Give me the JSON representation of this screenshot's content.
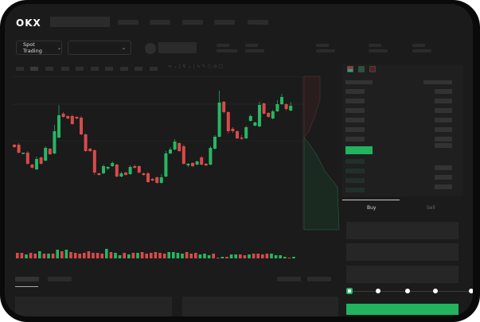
{
  "header": {
    "logo": "OKX"
  },
  "toolbar": {
    "market_selector": "Spot Trading"
  },
  "order_form": {
    "tabs": [
      {
        "label": "Buy",
        "active": true
      },
      {
        "label": "Sell",
        "active": false
      }
    ],
    "slider_value": 0
  },
  "colors": {
    "up": "#26b764",
    "down": "#d94a4a",
    "background": "#1b1b1b",
    "accent": "#21c063"
  },
  "chart_data": {
    "type": "candlestick",
    "candles": [
      [
        68,
        65,
        69,
        64
      ],
      [
        68,
        58,
        70,
        57
      ],
      [
        57,
        58,
        58,
        56
      ],
      [
        58,
        44,
        60,
        43
      ],
      [
        43,
        39,
        44,
        38
      ],
      [
        37,
        50,
        53,
        36
      ],
      [
        52,
        44,
        53,
        43
      ],
      [
        48,
        64,
        66,
        47
      ],
      [
        63,
        56,
        64,
        55
      ],
      [
        57,
        85,
        93,
        56
      ],
      [
        77,
        105,
        118,
        76
      ],
      [
        107,
        103,
        109,
        102
      ],
      [
        104,
        101,
        105,
        100
      ],
      [
        104,
        94,
        106,
        93
      ],
      [
        103,
        101,
        104,
        100
      ],
      [
        102,
        81,
        104,
        80
      ],
      [
        81,
        60,
        82,
        59
      ],
      [
        63,
        60,
        64,
        59
      ],
      [
        61,
        33,
        62,
        30
      ],
      [
        32,
        30,
        33,
        29
      ],
      [
        32,
        41,
        43,
        31
      ],
      [
        38,
        40,
        41,
        36
      ],
      [
        41,
        45,
        47,
        40
      ],
      [
        43,
        28,
        44,
        27
      ],
      [
        28,
        32,
        34,
        27
      ],
      [
        33,
        30,
        34,
        29
      ],
      [
        31,
        40,
        42,
        30
      ],
      [
        41,
        39,
        43,
        38
      ],
      [
        41,
        33,
        42,
        32
      ],
      [
        32,
        30,
        33,
        29
      ],
      [
        32,
        21,
        34,
        20
      ],
      [
        25,
        23,
        26,
        22
      ],
      [
        27,
        20,
        28,
        19
      ],
      [
        20,
        27,
        31,
        19
      ],
      [
        28,
        57,
        60,
        27
      ],
      [
        57,
        62,
        65,
        56
      ],
      [
        62,
        72,
        75,
        61
      ],
      [
        70,
        60,
        71,
        59
      ],
      [
        66,
        44,
        68,
        43
      ],
      [
        42,
        44,
        45,
        40
      ],
      [
        45,
        41,
        46,
        40
      ],
      [
        43,
        47,
        48,
        42
      ],
      [
        52,
        43,
        54,
        42
      ],
      [
        44,
        42,
        45,
        41
      ],
      [
        43,
        64,
        66,
        42
      ],
      [
        63,
        78,
        80,
        62
      ],
      [
        78,
        121,
        136,
        77
      ],
      [
        122,
        109,
        123,
        107
      ],
      [
        109,
        85,
        110,
        82
      ],
      [
        88,
        85,
        90,
        83
      ],
      [
        85,
        76,
        86,
        75
      ],
      [
        77,
        76,
        80,
        74
      ],
      [
        76,
        90,
        92,
        75
      ],
      [
        98,
        104,
        106,
        97
      ],
      [
        92,
        96,
        97,
        91
      ],
      [
        91,
        118,
        122,
        90
      ],
      [
        120,
        107,
        121,
        106
      ],
      [
        108,
        103,
        109,
        102
      ],
      [
        101,
        110,
        112,
        100
      ],
      [
        110,
        119,
        124,
        109
      ],
      [
        119,
        128,
        132,
        118
      ],
      [
        119,
        113,
        120,
        111
      ],
      [
        111,
        117,
        122,
        110
      ]
    ],
    "volume": [
      [
        7,
        0
      ],
      [
        7,
        0
      ],
      [
        5,
        1
      ],
      [
        7,
        0
      ],
      [
        6,
        0
      ],
      [
        9,
        1
      ],
      [
        6,
        0
      ],
      [
        6,
        1
      ],
      [
        6,
        0
      ],
      [
        11,
        1
      ],
      [
        9,
        0
      ],
      [
        11,
        1
      ],
      [
        8,
        0
      ],
      [
        7,
        0
      ],
      [
        6,
        0
      ],
      [
        7,
        0
      ],
      [
        9,
        0
      ],
      [
        7,
        0
      ],
      [
        7,
        0
      ],
      [
        6,
        0
      ],
      [
        12,
        1
      ],
      [
        8,
        0
      ],
      [
        7,
        1
      ],
      [
        4,
        1
      ],
      [
        7,
        0
      ],
      [
        5,
        1
      ],
      [
        7,
        0
      ],
      [
        7,
        1
      ],
      [
        8,
        0
      ],
      [
        6,
        0
      ],
      [
        7,
        0
      ],
      [
        8,
        0
      ],
      [
        7,
        0
      ],
      [
        6,
        0
      ],
      [
        8,
        1
      ],
      [
        8,
        1
      ],
      [
        7,
        1
      ],
      [
        6,
        1
      ],
      [
        8,
        0
      ],
      [
        6,
        0
      ],
      [
        7,
        0
      ],
      [
        5,
        1
      ],
      [
        6,
        1
      ],
      [
        4,
        1
      ],
      [
        6,
        0
      ],
      [
        1,
        0
      ],
      [
        2,
        1
      ],
      [
        2,
        0
      ],
      [
        5,
        1
      ],
      [
        5,
        1
      ],
      [
        5,
        0
      ],
      [
        4,
        0
      ],
      [
        5,
        1
      ],
      [
        6,
        0
      ],
      [
        6,
        0
      ],
      [
        5,
        0
      ],
      [
        6,
        0
      ],
      [
        6,
        1
      ],
      [
        4,
        1
      ],
      [
        4,
        1
      ],
      [
        2,
        1
      ],
      [
        1,
        0
      ],
      [
        2,
        1
      ]
    ]
  }
}
